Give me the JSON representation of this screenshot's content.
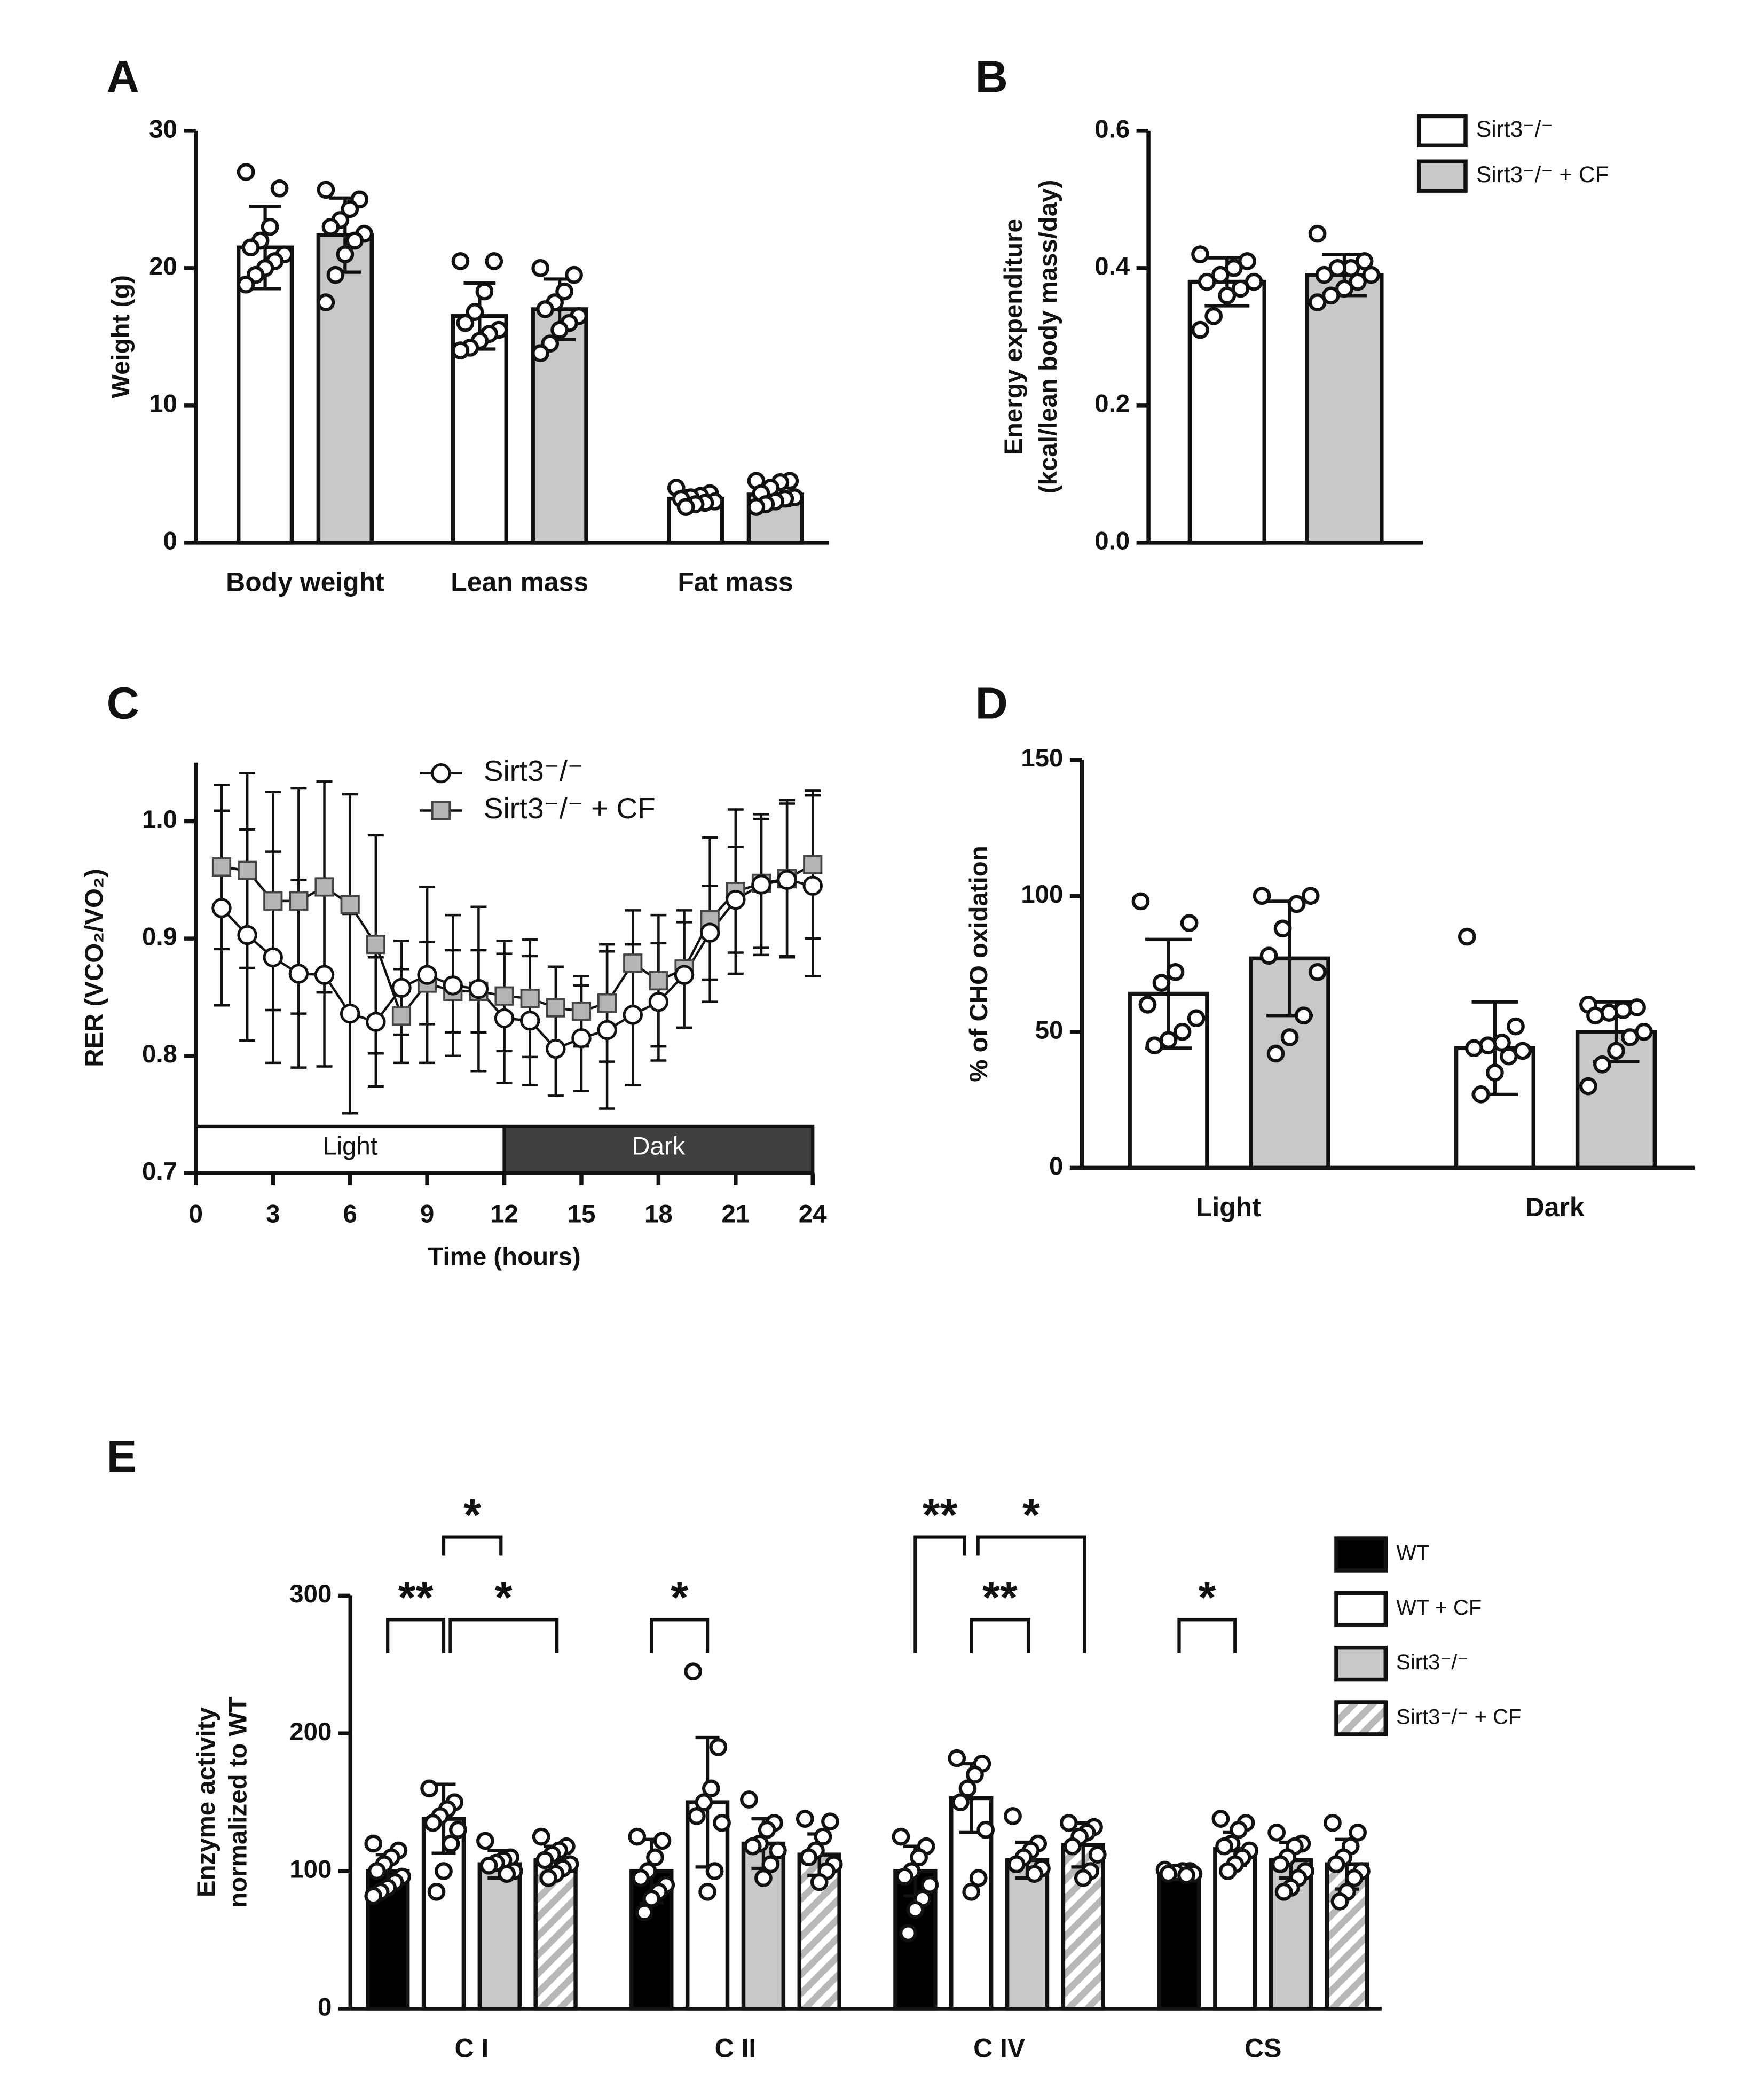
{
  "chart_data": [
    {
      "type": "bar",
      "panel": "A",
      "ylabel": [
        "Weight (g)"
      ],
      "categories": [
        "Body weight",
        "Lean mass",
        "Fat mass"
      ],
      "ylim": [
        0,
        30
      ],
      "yticks": [
        0,
        10,
        20,
        30
      ],
      "series": [
        {
          "color": "#ffffff",
          "values": [
            21.5,
            16.5,
            3.2
          ],
          "errors": [
            3,
            2.4,
            0.6
          ],
          "points": [
            [
              27,
              25.8,
              23,
              22,
              21.5,
              21,
              20.5,
              20,
              19.5,
              18.8
            ],
            [
              20.5,
              20.5,
              18.3,
              16.8,
              16,
              15.5,
              15.2,
              14.7,
              14.2,
              14
            ],
            [
              4,
              3.6,
              3.4,
              3.3,
              3.2,
              3,
              2.9,
              2.8,
              2.6
            ]
          ]
        },
        {
          "color": "#c8c8c8",
          "values": [
            22.4,
            17,
            3.5
          ],
          "errors": [
            2.7,
            2.2,
            0.8
          ],
          "points": [
            [
              25.7,
              25,
              24.3,
              23.5,
              23,
              22.5,
              22,
              21,
              19.5,
              17.5
            ],
            [
              20,
              19.5,
              18.3,
              17.5,
              17,
              16.5,
              16,
              15.5,
              14.5,
              13.8
            ],
            [
              4.5,
              4.5,
              4.4,
              4,
              3.6,
              3.3,
              3.2,
              3,
              2.8,
              2.6
            ]
          ]
        }
      ]
    },
    {
      "type": "bar",
      "panel": "B",
      "ylabel": [
        "Energy expenditure",
        "(kcal/lean body mass/day)"
      ],
      "categories": [
        null
      ],
      "ylim": [
        0,
        0.6
      ],
      "yticks": [
        {
          "value": 0,
          "label": "0.0"
        },
        0.2,
        0.4,
        0.6
      ],
      "series": [
        {
          "name": "Sirt3⁻/⁻",
          "color": "#ffffff",
          "values": [
            0.38
          ],
          "errors": [
            0.035
          ],
          "points": [
            [
              0.42,
              0.41,
              0.4,
              0.39,
              0.38,
              0.38,
              0.37,
              0.36,
              0.33,
              0.31
            ]
          ]
        },
        {
          "name": "Sirt3⁻/⁻ + CF",
          "color": "#c8c8c8",
          "values": [
            0.39
          ],
          "errors": [
            0.03
          ],
          "points": [
            [
              0.45,
              0.41,
              0.4,
              0.4,
              0.39,
              0.39,
              0.38,
              0.37,
              0.36,
              0.35
            ]
          ]
        }
      ]
    },
    {
      "type": "line",
      "panel": "C",
      "ylabel": [
        "RER (VCO₂/VO₂)"
      ],
      "xlabel": "Time (hours)",
      "x": [
        1,
        2,
        3,
        4,
        5,
        6,
        7,
        8,
        9,
        10,
        11,
        12,
        13,
        14,
        15,
        16,
        17,
        18,
        19,
        20,
        21,
        22,
        23,
        24
      ],
      "xlim": [
        0,
        24
      ],
      "xticks": [
        0,
        3,
        6,
        9,
        12,
        15,
        18,
        21,
        24
      ],
      "ylim": [
        0.7,
        1.05
      ],
      "yticks": [
        0.7,
        0.8,
        0.9,
        {
          "value": 1.0,
          "label": "1.0"
        }
      ],
      "periods": [
        {
          "label": "Light",
          "range": [
            0,
            12
          ]
        },
        {
          "label": "Dark",
          "range": [
            12,
            24
          ]
        }
      ],
      "series": [
        {
          "name": "Sirt3⁻/⁻",
          "color": "#ffffff",
          "marker": "circle",
          "values": [
            0.926,
            0.903,
            0.884,
            0.87,
            0.869,
            0.836,
            0.829,
            0.858,
            0.869,
            0.86,
            0.857,
            0.832,
            0.83,
            0.806,
            0.815,
            0.822,
            0.835,
            0.846,
            0.869,
            0.905,
            0.933,
            0.946,
            0.95,
            0.945
          ],
          "errors": [
            0.083,
            0.09,
            0.09,
            0.08,
            0.078,
            0.085,
            0.055,
            0.04,
            0.075,
            0.06,
            0.07,
            0.055,
            0.055,
            0.04,
            0.045,
            0.067,
            0.06,
            0.05,
            0.045,
            0.04,
            0.045,
            0.06,
            0.065,
            0.077
          ]
        },
        {
          "name": "Sirt3⁻/⁻ + CF",
          "color": "#b4b4b4",
          "marker": "square",
          "values": [
            0.961,
            0.958,
            0.932,
            0.932,
            0.944,
            0.929,
            0.895,
            0.834,
            0.862,
            0.855,
            0.855,
            0.851,
            0.849,
            0.841,
            0.838,
            0.845,
            0.879,
            0.864,
            0.874,
            0.916,
            0.94,
            0.947,
            0.951,
            0.963
          ],
          "errors": [
            0.07,
            0.083,
            0.093,
            0.096,
            0.09,
            0.094,
            0.093,
            0.04,
            0.035,
            0.035,
            0.035,
            0.047,
            0.05,
            0.035,
            0.03,
            0.05,
            0.045,
            0.056,
            0.05,
            0.07,
            0.07,
            0.055,
            0.067,
            0.063
          ]
        }
      ]
    },
    {
      "type": "bar",
      "panel": "D",
      "ylabel": [
        "% of CHO oxidation"
      ],
      "categories": [
        "Light",
        "Dark"
      ],
      "ylim": [
        0,
        150
      ],
      "yticks": [
        0,
        50,
        100,
        150
      ],
      "series": [
        {
          "color": "#ffffff",
          "values": [
            64,
            44
          ],
          "errors": [
            20,
            17
          ],
          "points": [
            [
              98,
              90,
              72,
              68,
              60,
              55,
              50,
              47,
              45
            ],
            [
              85,
              52,
              46,
              45,
              44,
              43,
              41,
              35,
              27
            ]
          ]
        },
        {
          "color": "#c8c8c8",
          "values": [
            77,
            50
          ],
          "errors": [
            21,
            11
          ],
          "points": [
            [
              100,
              100,
              97,
              88,
              78,
              72,
              56,
              48,
              42
            ],
            [
              60,
              59,
              58,
              57,
              56,
              50,
              48,
              43,
              38,
              30
            ]
          ]
        }
      ]
    },
    {
      "type": "bar",
      "panel": "E",
      "ylabel": [
        "Enzyme activity",
        "normalized to WT"
      ],
      "categories": [
        "C I",
        "C II",
        "C IV",
        "CS"
      ],
      "ylim": [
        0,
        300
      ],
      "yticks": [
        0,
        100,
        200,
        300
      ],
      "annotations": [
        "**",
        "*",
        "*",
        "*",
        "**",
        "*",
        "**",
        "*"
      ],
      "series": [
        {
          "name": "WT",
          "color": "#000000",
          "values": [
            100,
            100,
            100,
            100
          ],
          "errors": [
            12,
            23,
            18,
            3
          ],
          "points": [
            [
              120,
              115,
              110,
              105,
              100,
              96,
              92,
              88,
              85,
              82
            ],
            [
              125,
              122,
              110,
              100,
              95,
              90,
              85,
              80,
              70
            ],
            [
              125,
              118,
              110,
              100,
              96,
              90,
              80,
              72,
              55
            ],
            [
              101,
              100,
              100,
              99,
              98,
              98,
              97
            ]
          ]
        },
        {
          "name": "WT + CF",
          "color": "#ffffff",
          "values": [
            138,
            150,
            153,
            116
          ],
          "errors": [
            25,
            47,
            25,
            12
          ],
          "points": [
            [
              160,
              150,
              145,
              140,
              135,
              130,
              120,
              100,
              85
            ],
            [
              245,
              190,
              160,
              150,
              140,
              135,
              100,
              85
            ],
            [
              182,
              178,
              170,
              160,
              150,
              130,
              95,
              85
            ],
            [
              138,
              135,
              130,
              120,
              118,
              115,
              110,
              105,
              100
            ]
          ]
        },
        {
          "name": "Sirt3⁻/⁻",
          "color": "#c8c8c8",
          "values": [
            105,
            120,
            108,
            108
          ],
          "errors": [
            10,
            18,
            13,
            13
          ],
          "points": [
            [
              122,
              110,
              108,
              106,
              104,
              100,
              98
            ],
            [
              152,
              135,
              130,
              120,
              118,
              115,
              105,
              95
            ],
            [
              140,
              120,
              115,
              110,
              105,
              102,
              98
            ],
            [
              128,
              120,
              118,
              110,
              105,
              100,
              95,
              88,
              85
            ]
          ]
        },
        {
          "name": "Sirt3⁻/⁻ + CF",
          "color": "#c8c8c8",
          "pattern": "hatch",
          "values": [
            108,
            112,
            119,
            105
          ],
          "errors": [
            10,
            15,
            16,
            18
          ],
          "points": [
            [
              125,
              118,
              115,
              112,
              108,
              105,
              102,
              98,
              95
            ],
            [
              138,
              136,
              125,
              115,
              110,
              105,
              100,
              92
            ],
            [
              135,
              132,
              128,
              125,
              118,
              112,
              100,
              95
            ],
            [
              135,
              128,
              118,
              110,
              105,
              100,
              95,
              85,
              78
            ]
          ]
        }
      ]
    }
  ]
}
